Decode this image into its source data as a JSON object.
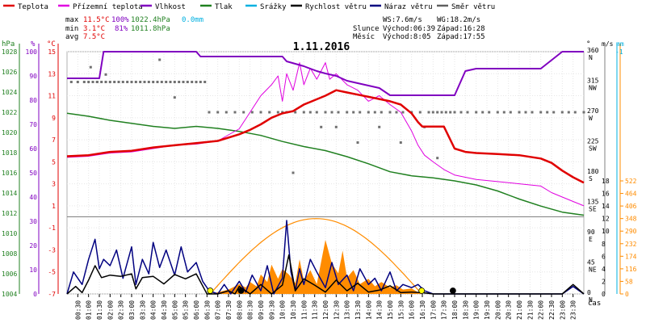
{
  "chart_data": {
    "type": "line",
    "title": "1.11.2016",
    "legend": [
      {
        "label": "Teplota",
        "color": "#e00000"
      },
      {
        "label": "Přízemní teplota",
        "color": "#e000e0"
      },
      {
        "label": "Vlhkost",
        "color": "#8000c0"
      },
      {
        "label": "Tlak",
        "color": "#208020"
      },
      {
        "label": "Srážky",
        "color": "#00b0e0"
      },
      {
        "label": "Rychlost větru",
        "color": "#000000"
      },
      {
        "label": "Náraz větru",
        "color": "#000080"
      },
      {
        "label": "Směr větru",
        "color": "#606060"
      }
    ],
    "stats": {
      "max_label": "max",
      "min_label": "min",
      "avg_label": "avg",
      "max_temp": "11.5°C",
      "max_hum": "100%",
      "max_pres": "1022.4hPa",
      "max_rain": "0.0mm",
      "min_temp": "3.1°C",
      "min_hum": "81%",
      "min_pres": "1011.8hPa",
      "avg_temp": "7.5°C",
      "ws": "WS:7.6m/s",
      "wg": "WG:18.2m/s",
      "sun_label": "Slunce",
      "sun_rise": "Východ:06:39",
      "sun_set": "Západ:16:28",
      "moon_label": "Měsíc",
      "moon_rise": "Východ:8:05",
      "moon_set": "Západ:17:55"
    },
    "axis_units": {
      "pressure": "hPa",
      "humidity": "%",
      "temp": "°C",
      "direction": "°",
      "wind": "m/s",
      "rain": "mm",
      "time": "čas"
    },
    "pressure_ticks": [
      1004,
      1006,
      1008,
      1010,
      1012,
      1014,
      1016,
      1018,
      1020,
      1022,
      1024,
      1026,
      1028
    ],
    "humidity_ticks": [
      0,
      10,
      20,
      30,
      40,
      50,
      60,
      70,
      80,
      90,
      100
    ],
    "temp_ticks": [
      -7,
      -5,
      -3,
      -1,
      1,
      3,
      5,
      7,
      9,
      11,
      13,
      15
    ],
    "direction_ticks": [
      {
        "deg": 0,
        "label": "0",
        "dir": "N"
      },
      {
        "deg": 45,
        "label": "45",
        "dir": "NE"
      },
      {
        "deg": 90,
        "label": "90",
        "dir": "E"
      },
      {
        "deg": 135,
        "label": "135",
        "dir": "SE"
      },
      {
        "deg": 180,
        "label": "180",
        "dir": "S"
      },
      {
        "deg": 225,
        "label": "225",
        "dir": "SW"
      },
      {
        "deg": 270,
        "label": "270",
        "dir": "W"
      },
      {
        "deg": 315,
        "label": "315",
        "dir": "NW"
      },
      {
        "deg": 360,
        "label": "360",
        "dir": "N"
      }
    ],
    "wind_ticks": [
      0,
      2,
      4,
      6,
      8,
      10,
      12,
      14,
      16,
      18
    ],
    "wind_top_label": "-1",
    "solar_ticks": [
      0,
      58,
      116,
      174,
      232,
      290,
      348,
      406,
      464,
      522
    ],
    "time_labels": [
      "00:30",
      "01:00",
      "01:30",
      "02:00",
      "02:30",
      "03:00",
      "03:30",
      "04:00",
      "04:30",
      "05:00",
      "05:30",
      "06:00",
      "06:30",
      "07:00",
      "07:30",
      "08:00",
      "08:30",
      "09:00",
      "09:30",
      "10:00",
      "10:30",
      "11:00",
      "11:30",
      "12:00",
      "12:30",
      "13:00",
      "13:30",
      "14:00",
      "14:30",
      "15:00",
      "15:30",
      "16:00",
      "16:30",
      "17:00",
      "17:30",
      "18:00",
      "18:30",
      "19:00",
      "19:30",
      "20:00",
      "20:30",
      "21:00",
      "21:30",
      "22:00",
      "22:30",
      "23:00",
      "23:30"
    ],
    "temperature": {
      "hours": [
        0,
        1,
        2,
        3,
        4,
        5,
        6,
        7,
        8,
        8.5,
        9,
        9.5,
        10,
        10.5,
        11,
        11.5,
        12,
        12.5,
        13,
        13.5,
        14,
        14.5,
        15,
        15.5,
        16,
        16.3,
        16.5,
        17,
        17.5,
        18,
        18.5,
        19,
        20,
        21,
        22,
        22.5,
        23,
        23.5,
        24
      ],
      "values": [
        5.5,
        5.6,
        5.9,
        6.0,
        6.3,
        6.5,
        6.7,
        6.9,
        7.5,
        7.9,
        8.4,
        9.0,
        9.4,
        9.6,
        10.2,
        10.6,
        11.0,
        11.5,
        11.3,
        11.1,
        10.9,
        10.7,
        10.5,
        10.2,
        9.4,
        8.6,
        8.2,
        8.2,
        8.2,
        6.2,
        5.9,
        5.8,
        5.7,
        5.6,
        5.3,
        4.9,
        4.2,
        3.6,
        3.1
      ]
    },
    "ground_temperature": {
      "hours": [
        0,
        1,
        2,
        3,
        4,
        5,
        6,
        7,
        8,
        8.5,
        9,
        9.5,
        9.8,
        10,
        10.2,
        10.5,
        10.8,
        11,
        11.3,
        11.6,
        12,
        12.2,
        12.5,
        13,
        13.5,
        14,
        14.5,
        15,
        15.5,
        16,
        16.3,
        16.6,
        17,
        17.5,
        18,
        18.5,
        19,
        20,
        21,
        22,
        22.5,
        23,
        23.5,
        24
      ],
      "values": [
        5.4,
        5.5,
        5.8,
        5.9,
        6.2,
        6.5,
        6.6,
        6.9,
        8.0,
        9.5,
        11.0,
        12.0,
        12.8,
        10.5,
        13.0,
        11.5,
        14.0,
        12.0,
        13.5,
        12.5,
        14.0,
        12.5,
        13.0,
        12.0,
        11.5,
        10.5,
        11.0,
        10.2,
        9.5,
        7.8,
        6.5,
        5.6,
        5.0,
        4.3,
        3.8,
        3.6,
        3.4,
        3.2,
        3.0,
        2.8,
        2.2,
        1.8,
        1.4,
        1.0
      ]
    },
    "humidity": {
      "hours": [
        0,
        0.6,
        1.5,
        1.7,
        6,
        6.2,
        8,
        10,
        10.2,
        10.6,
        11,
        11.3,
        11.6,
        12,
        12.5,
        13,
        13.5,
        14,
        14.5,
        15,
        15.5,
        16,
        17,
        17.5,
        18,
        18.5,
        19,
        22,
        23,
        24
      ],
      "values": [
        89,
        89,
        89,
        100,
        100,
        98,
        98,
        98,
        96,
        95,
        94,
        93,
        92,
        91,
        90,
        88,
        87,
        86,
        85,
        82,
        82,
        82,
        82,
        82,
        82,
        92,
        93,
        93,
        100,
        100
      ]
    },
    "pressure": {
      "hours": [
        0,
        1,
        2,
        3,
        4,
        5,
        6,
        7,
        8,
        9,
        10,
        11,
        12,
        13,
        14,
        15,
        16,
        17,
        18,
        19,
        20,
        21,
        22,
        23,
        24
      ],
      "values": [
        1021.9,
        1021.6,
        1021.2,
        1020.9,
        1020.6,
        1020.4,
        1020.6,
        1020.4,
        1020.1,
        1019.7,
        1019.1,
        1018.6,
        1018.2,
        1017.6,
        1016.9,
        1016.1,
        1015.7,
        1015.5,
        1015.2,
        1014.8,
        1014.2,
        1013.4,
        1012.7,
        1012.1,
        1011.8
      ]
    },
    "wind_speed": {
      "hours": [
        0,
        0.4,
        0.7,
        1.0,
        1.3,
        1.6,
        2.0,
        2.5,
        3.0,
        3.2,
        3.5,
        4.0,
        4.5,
        5.0,
        5.5,
        6.0,
        6.5,
        7.0,
        7.5,
        7.8,
        8.0,
        8.5,
        9.0,
        9.5,
        10.0,
        10.3,
        10.6,
        11.0,
        11.5,
        12.0,
        12.5,
        13.0,
        13.5,
        14.0,
        14.5,
        15.0,
        15.5,
        16.0,
        16.5,
        17.0,
        18.0,
        19.0,
        20.0,
        21.0,
        22.0,
        23.0,
        23.5,
        24.0
      ],
      "values": [
        0,
        1.2,
        0.2,
        2.2,
        4.5,
        2.6,
        3.0,
        2.8,
        3.2,
        0.8,
        2.6,
        2.8,
        1.6,
        3.1,
        2.4,
        3.2,
        0,
        0,
        0.5,
        0,
        1.2,
        0,
        1.5,
        0,
        1.4,
        6.2,
        0.5,
        2.4,
        1.4,
        0.3,
        2.2,
        0.5,
        1.7,
        0.3,
        0.6,
        1.3,
        0.2,
        0.3,
        0.2,
        0,
        0,
        0,
        0,
        0,
        0,
        0,
        1.5,
        0
      ]
    },
    "wind_gust": {
      "hours": [
        0,
        0.3,
        0.7,
        1.0,
        1.3,
        1.5,
        1.7,
        2.0,
        2.3,
        2.6,
        3.0,
        3.2,
        3.5,
        3.8,
        4.0,
        4.3,
        4.6,
        5.0,
        5.3,
        5.6,
        6.0,
        6.3,
        6.6,
        7.0,
        7.3,
        7.6,
        8.0,
        8.3,
        8.6,
        9.0,
        9.3,
        9.6,
        10.0,
        10.2,
        10.4,
        10.6,
        10.8,
        11.0,
        11.3,
        11.6,
        12.0,
        12.3,
        12.6,
        13.0,
        13.3,
        13.6,
        14.0,
        14.3,
        14.6,
        15.0,
        15.3,
        15.6,
        16.0,
        16.3,
        16.6,
        17.0,
        18.0,
        19.0,
        20.0,
        21.0,
        22.0,
        23.0,
        23.5,
        24.0
      ],
      "values": [
        0,
        3.5,
        1.5,
        5.5,
        8.7,
        4.0,
        5.5,
        4.5,
        7.0,
        2.5,
        7.5,
        1.5,
        5.5,
        3.2,
        8.2,
        4.2,
        7.0,
        3.0,
        7.5,
        3.5,
        5.0,
        2.0,
        0.5,
        0,
        1.5,
        0,
        2.0,
        0.3,
        3.0,
        0.5,
        4.5,
        0,
        2.5,
        11.7,
        3.5,
        0.5,
        4.0,
        1.5,
        5.5,
        3.5,
        1.0,
        5.0,
        1.5,
        3.0,
        0.5,
        4.0,
        1.5,
        2.5,
        0.5,
        3.5,
        0.5,
        1.5,
        1.0,
        1.5,
        0.5,
        0,
        0,
        0,
        0,
        0,
        0,
        0,
        1.2,
        0
      ]
    },
    "solar_radiation": {
      "hours": [
        6.7,
        7.0,
        7.5,
        8.0,
        8.3,
        8.5,
        8.8,
        9.0,
        9.3,
        9.5,
        9.8,
        10.0,
        10.3,
        10.6,
        10.8,
        11.0,
        11.3,
        11.6,
        12.0,
        12.3,
        12.6,
        12.8,
        13.0,
        13.3,
        13.6,
        14.0,
        14.3,
        14.6,
        15.0,
        15.3,
        15.6,
        16.0,
        16.3,
        16.5
      ],
      "values": [
        0,
        8,
        20,
        45,
        30,
        55,
        35,
        90,
        55,
        135,
        70,
        115,
        90,
        50,
        160,
        60,
        110,
        45,
        250,
        140,
        95,
        200,
        75,
        110,
        45,
        70,
        35,
        55,
        30,
        40,
        20,
        25,
        8,
        0
      ]
    },
    "sun_curve": {
      "rise_hour": 6.65,
      "set_hour": 16.47,
      "peak": 348
    },
    "wind_direction": {
      "hours": [
        0.2,
        0.5,
        0.8,
        1.0,
        1.2,
        1.4,
        1.6,
        1.8,
        2.0,
        2.2,
        2.4,
        2.6,
        2.8,
        3.0,
        3.2,
        3.4,
        3.6,
        3.8,
        4.0,
        4.2,
        4.4,
        4.6,
        4.8,
        5.0,
        5.2,
        5.4,
        5.6,
        5.8,
        6.0,
        6.2,
        6.4,
        1.1,
        1.4,
        1.8,
        4.3,
        5.0,
        6.6,
        7.0,
        7.4,
        7.8,
        8.2,
        8.6,
        9.0,
        9.4,
        9.8,
        10.0,
        10.2,
        10.6,
        11.0,
        11.3,
        11.6,
        12.0,
        12.3,
        12.6,
        13.0,
        13.3,
        13.6,
        14.0,
        14.3,
        14.6,
        15.0,
        15.3,
        15.6,
        16.0,
        16.4,
        16.8,
        17.0,
        17.2,
        17.4,
        17.6,
        17.8,
        18.0,
        18.3,
        18.6,
        19.0,
        19.3,
        19.6,
        20.0,
        20.3,
        20.6,
        21.0,
        21.3,
        21.6,
        22.0,
        22.3,
        22.6,
        23.0,
        23.3,
        23.6,
        24.0,
        12.5,
        13.5,
        14.5,
        15.5,
        10.5,
        11.8,
        17.2,
        16.6
      ],
      "values": [
        315,
        315,
        315,
        315,
        315,
        315,
        315,
        315,
        315,
        315,
        315,
        315,
        315,
        315,
        315,
        315,
        315,
        315,
        315,
        315,
        315,
        315,
        315,
        315,
        315,
        315,
        315,
        315,
        315,
        315,
        315,
        337,
        315,
        326,
        348,
        292,
        270,
        270,
        270,
        270,
        270,
        270,
        270,
        270,
        270,
        270,
        270,
        270,
        270,
        270,
        270,
        270,
        270,
        270,
        270,
        270,
        270,
        270,
        270,
        270,
        270,
        270,
        270,
        270,
        270,
        270,
        270,
        270,
        270,
        270,
        270,
        270,
        270,
        270,
        270,
        270,
        270,
        270,
        270,
        270,
        270,
        270,
        270,
        270,
        270,
        270,
        270,
        270,
        270,
        270,
        248,
        225,
        248,
        225,
        180,
        248,
        202,
        248
      ]
    }
  }
}
